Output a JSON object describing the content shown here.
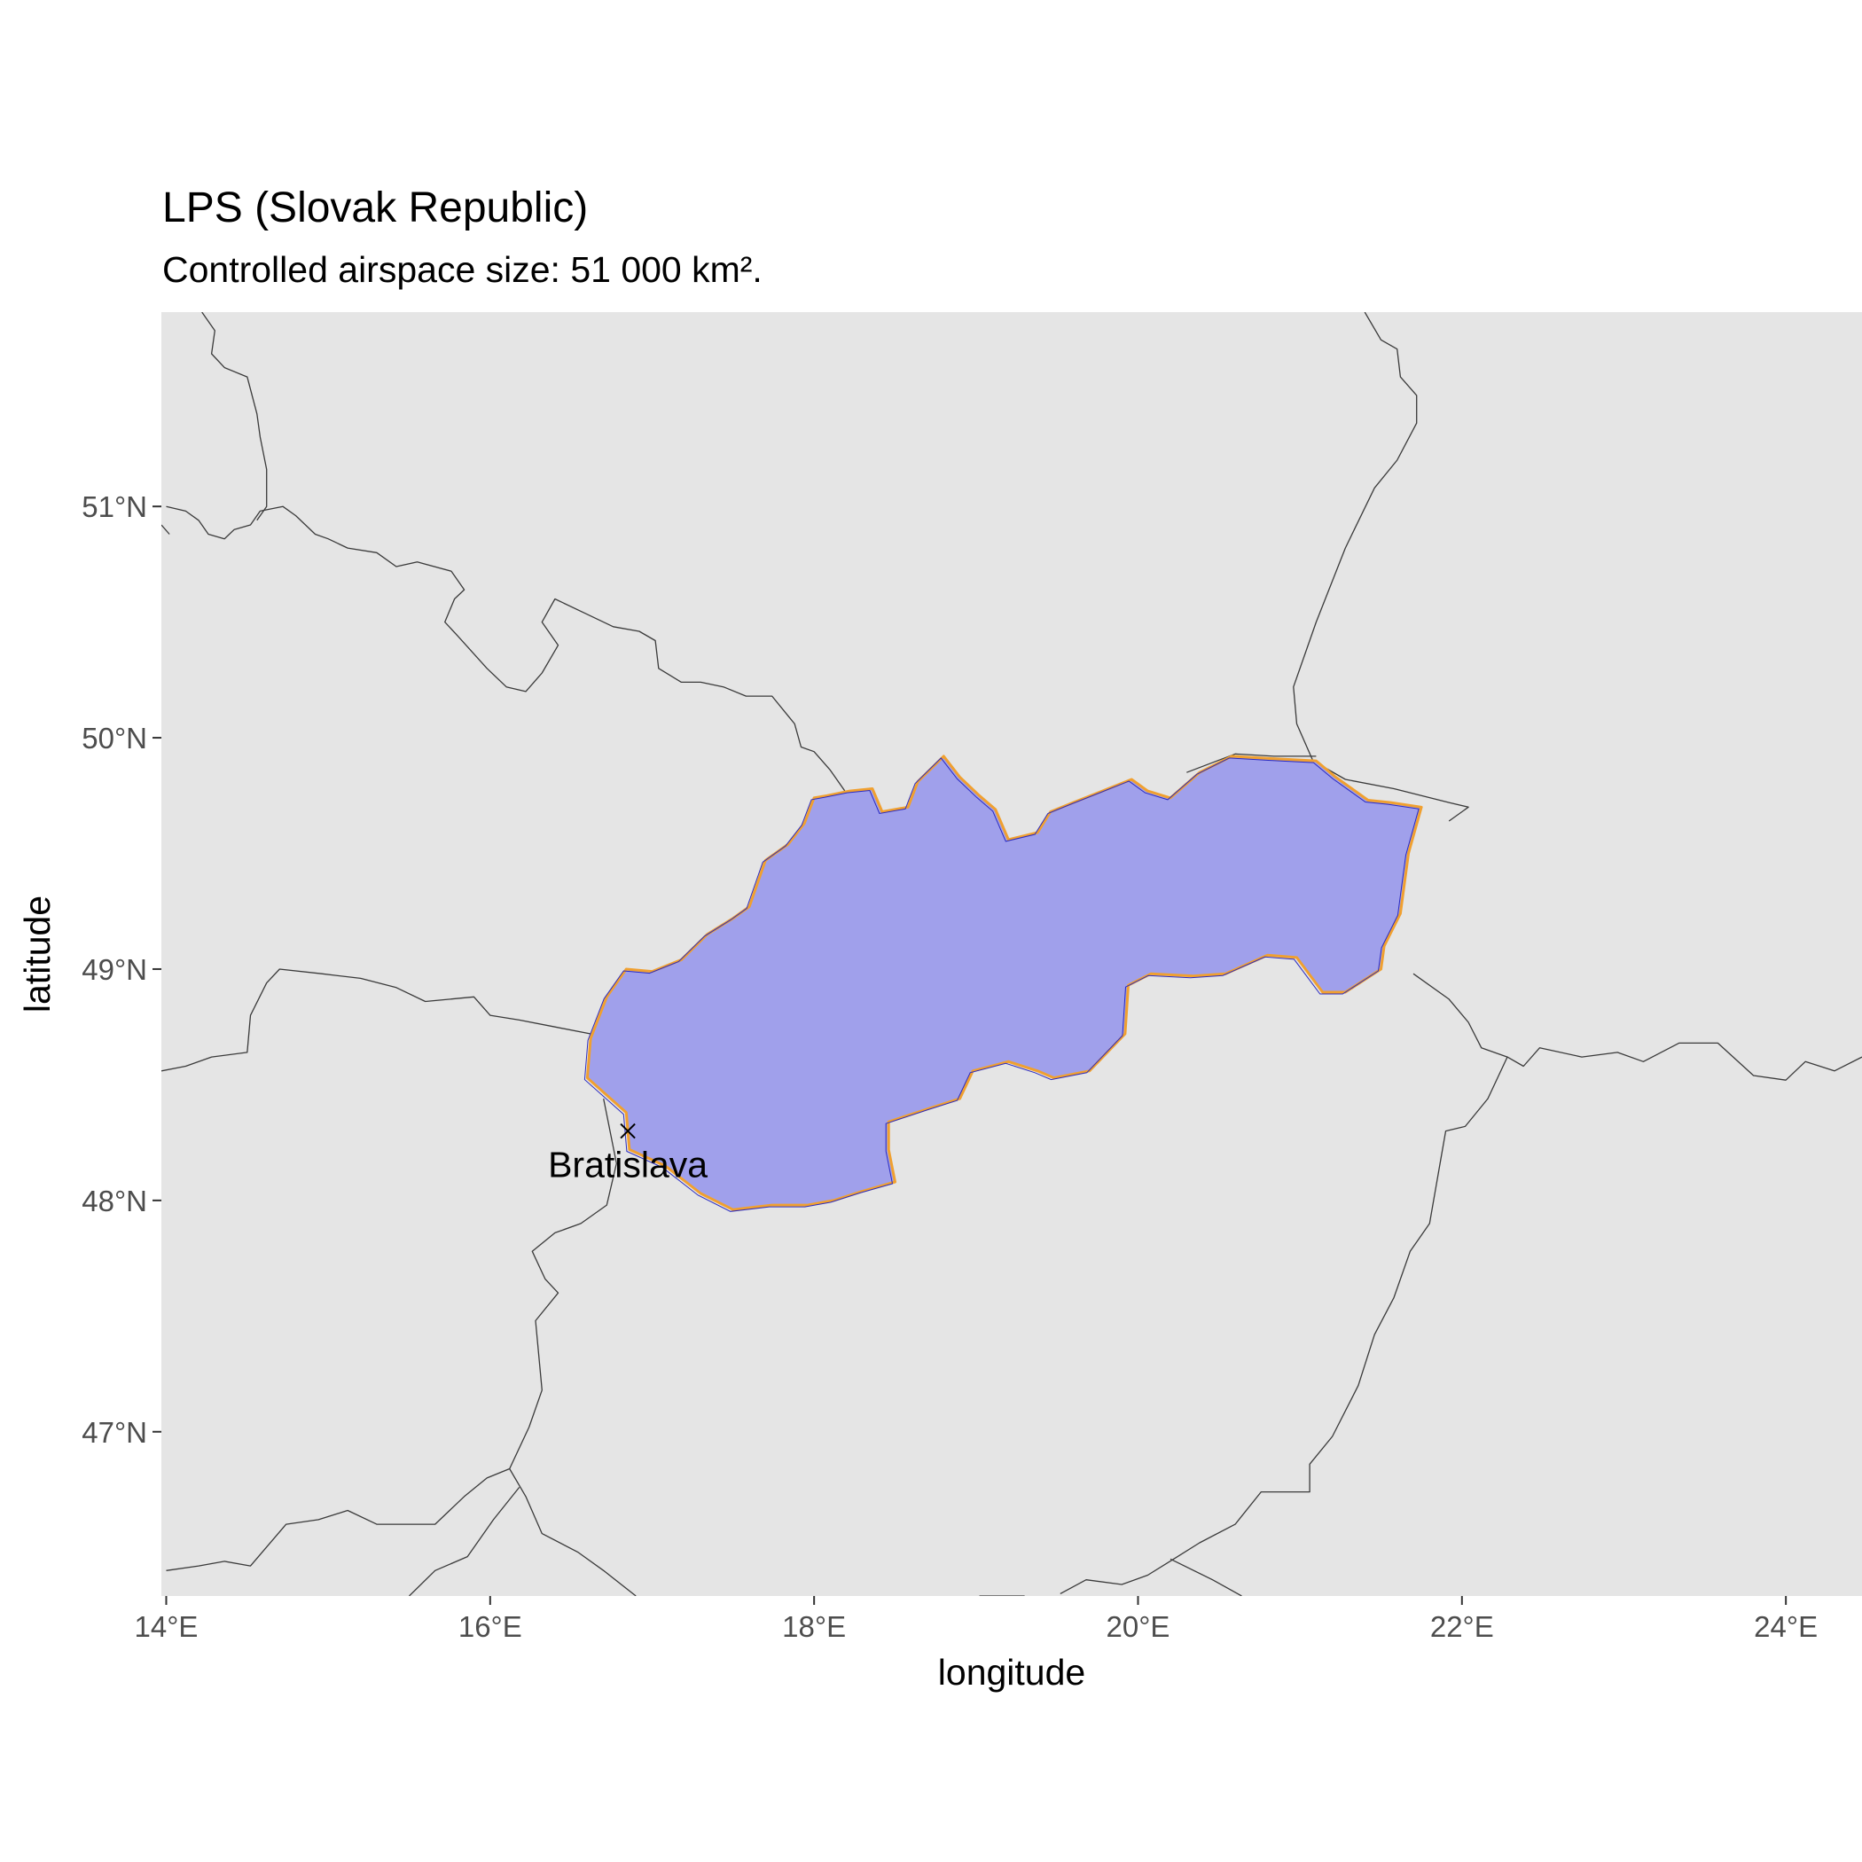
{
  "title": "LPS (Slovak Republic)",
  "subtitle": "Controlled airspace size: 51 000 km².",
  "axes": {
    "x_title": "longitude",
    "y_title": "latitude",
    "x_ticks": [
      {
        "value": 14,
        "label": "14°E"
      },
      {
        "value": 16,
        "label": "16°E"
      },
      {
        "value": 18,
        "label": "18°E"
      },
      {
        "value": 20,
        "label": "20°E"
      },
      {
        "value": 22,
        "label": "22°E"
      },
      {
        "value": 24,
        "label": "24°E"
      }
    ],
    "y_ticks": [
      {
        "value": 47,
        "label": "47°N"
      },
      {
        "value": 48,
        "label": "48°N"
      },
      {
        "value": 49,
        "label": "49°N"
      },
      {
        "value": 50,
        "label": "50°N"
      },
      {
        "value": 51,
        "label": "51°N"
      }
    ],
    "lon_range": [
      13.97,
      24.47
    ],
    "lat_range": [
      46.29,
      51.84
    ]
  },
  "city": {
    "name": "Bratislava",
    "lon": 16.85,
    "lat": 48.3
  },
  "colors": {
    "panel": "#e5e5e5",
    "airspace_fill": "#a0a0eb",
    "airspace_outline": "#f0a030",
    "country_outline": "#2a2ac0",
    "borders": "#3a3a3a"
  },
  "chart_data": {
    "type": "map",
    "region": "LPS (Slovak Republic)",
    "airspace_polygon": [
      [
        16.84,
        48.38
      ],
      [
        16.6,
        48.53
      ],
      [
        16.62,
        48.7
      ],
      [
        16.72,
        48.88
      ],
      [
        16.84,
        49.0
      ],
      [
        17.0,
        48.99
      ],
      [
        17.18,
        49.04
      ],
      [
        17.34,
        49.15
      ],
      [
        17.5,
        49.22
      ],
      [
        17.6,
        49.27
      ],
      [
        17.7,
        49.47
      ],
      [
        17.84,
        49.54
      ],
      [
        17.94,
        49.63
      ],
      [
        18.0,
        49.74
      ],
      [
        18.08,
        49.75
      ],
      [
        18.22,
        49.77
      ],
      [
        18.36,
        49.78
      ],
      [
        18.42,
        49.68
      ],
      [
        18.58,
        49.7
      ],
      [
        18.64,
        49.81
      ],
      [
        18.8,
        49.92
      ],
      [
        18.9,
        49.83
      ],
      [
        19.02,
        49.75
      ],
      [
        19.12,
        49.69
      ],
      [
        19.2,
        49.56
      ],
      [
        19.38,
        49.59
      ],
      [
        19.46,
        49.68
      ],
      [
        19.6,
        49.72
      ],
      [
        19.78,
        49.77
      ],
      [
        19.96,
        49.82
      ],
      [
        20.06,
        49.77
      ],
      [
        20.2,
        49.74
      ],
      [
        20.38,
        49.85
      ],
      [
        20.58,
        49.92
      ],
      [
        20.82,
        49.91
      ],
      [
        21.1,
        49.9
      ],
      [
        21.22,
        49.83
      ],
      [
        21.42,
        49.73
      ],
      [
        21.56,
        49.72
      ],
      [
        21.75,
        49.7
      ],
      [
        21.67,
        49.5
      ],
      [
        21.62,
        49.24
      ],
      [
        21.52,
        49.1
      ],
      [
        21.5,
        49.0
      ],
      [
        21.28,
        48.9
      ],
      [
        21.14,
        48.9
      ],
      [
        20.98,
        49.05
      ],
      [
        20.8,
        49.06
      ],
      [
        20.54,
        48.98
      ],
      [
        20.34,
        48.97
      ],
      [
        20.08,
        48.98
      ],
      [
        19.94,
        48.93
      ],
      [
        19.92,
        48.72
      ],
      [
        19.7,
        48.56
      ],
      [
        19.48,
        48.53
      ],
      [
        19.38,
        48.56
      ],
      [
        19.2,
        48.6
      ],
      [
        18.98,
        48.56
      ],
      [
        18.9,
        48.44
      ],
      [
        18.72,
        48.4
      ],
      [
        18.46,
        48.34
      ],
      [
        18.46,
        48.22
      ],
      [
        18.5,
        48.08
      ],
      [
        18.3,
        48.04
      ],
      [
        18.12,
        48.0
      ],
      [
        17.96,
        47.98
      ],
      [
        17.74,
        47.98
      ],
      [
        17.5,
        47.96
      ],
      [
        17.3,
        48.03
      ],
      [
        17.08,
        48.15
      ],
      [
        16.86,
        48.22
      ]
    ],
    "borders": [
      [
        [
          14.0,
          51.0
        ],
        [
          14.12,
          50.98
        ],
        [
          14.2,
          50.94
        ],
        [
          14.26,
          50.88
        ],
        [
          14.36,
          50.86
        ],
        [
          14.42,
          50.9
        ],
        [
          14.52,
          50.92
        ],
        [
          14.58,
          50.98
        ],
        [
          14.72,
          51.0
        ],
        [
          14.8,
          50.96
        ],
        [
          14.92,
          50.88
        ],
        [
          15.0,
          50.86
        ],
        [
          15.12,
          50.82
        ],
        [
          15.3,
          50.8
        ],
        [
          15.42,
          50.74
        ],
        [
          15.55,
          50.76
        ],
        [
          15.76,
          50.72
        ],
        [
          15.84,
          50.64
        ],
        [
          15.78,
          50.6
        ],
        [
          15.72,
          50.5
        ],
        [
          15.8,
          50.44
        ],
        [
          15.98,
          50.3
        ],
        [
          16.1,
          50.22
        ],
        [
          16.22,
          50.2
        ],
        [
          16.32,
          50.28
        ],
        [
          16.42,
          50.4
        ],
        [
          16.32,
          50.5
        ],
        [
          16.4,
          50.6
        ],
        [
          16.58,
          50.54
        ],
        [
          16.76,
          50.48
        ],
        [
          16.92,
          50.46
        ],
        [
          17.02,
          50.42
        ],
        [
          17.04,
          50.3
        ],
        [
          17.18,
          50.24
        ],
        [
          17.3,
          50.24
        ],
        [
          17.44,
          50.22
        ],
        [
          17.58,
          50.18
        ],
        [
          17.74,
          50.18
        ],
        [
          17.88,
          50.06
        ],
        [
          17.92,
          49.96
        ],
        [
          18.0,
          49.94
        ],
        [
          18.1,
          49.86
        ],
        [
          18.2,
          49.76
        ]
      ],
      [
        [
          14.22,
          51.84
        ],
        [
          14.3,
          51.76
        ],
        [
          14.28,
          51.66
        ],
        [
          14.36,
          51.6
        ],
        [
          14.5,
          51.56
        ],
        [
          14.56,
          51.4
        ],
        [
          14.58,
          51.3
        ],
        [
          14.62,
          51.16
        ],
        [
          14.62,
          51.0
        ],
        [
          14.56,
          50.94
        ]
      ],
      [
        [
          13.97,
          50.92
        ],
        [
          14.02,
          50.88
        ]
      ],
      [
        [
          18.6,
          49.68
        ],
        [
          18.8,
          49.5
        ]
      ],
      [
        [
          21.4,
          51.84
        ],
        [
          21.5,
          51.72
        ],
        [
          21.6,
          51.68
        ],
        [
          21.62,
          51.56
        ],
        [
          21.72,
          51.48
        ],
        [
          21.72,
          51.36
        ],
        [
          21.6,
          51.2
        ],
        [
          21.46,
          51.08
        ],
        [
          21.28,
          50.82
        ],
        [
          21.1,
          50.5
        ],
        [
          20.96,
          50.22
        ],
        [
          20.98,
          50.06
        ],
        [
          21.08,
          49.9
        ],
        [
          21.28,
          49.82
        ],
        [
          21.58,
          49.78
        ],
        [
          21.92,
          49.72
        ],
        [
          22.04,
          49.7
        ],
        [
          21.92,
          49.64
        ]
      ],
      [
        [
          20.3,
          49.85
        ],
        [
          20.6,
          49.93
        ],
        [
          20.84,
          49.92
        ],
        [
          21.1,
          49.92
        ]
      ],
      [
        [
          21.7,
          48.98
        ],
        [
          21.92,
          48.87
        ],
        [
          22.04,
          48.77
        ],
        [
          22.12,
          48.66
        ],
        [
          22.28,
          48.62
        ],
        [
          22.38,
          48.58
        ],
        [
          22.48,
          48.66
        ],
        [
          22.74,
          48.62
        ],
        [
          22.96,
          48.64
        ],
        [
          23.12,
          48.6
        ],
        [
          23.34,
          48.68
        ],
        [
          23.58,
          48.68
        ],
        [
          23.8,
          48.54
        ],
        [
          24.0,
          48.52
        ],
        [
          24.12,
          48.6
        ],
        [
          24.3,
          48.56
        ],
        [
          24.47,
          48.62
        ]
      ],
      [
        [
          22.28,
          48.62
        ],
        [
          22.16,
          48.44
        ],
        [
          22.02,
          48.32
        ],
        [
          21.9,
          48.3
        ],
        [
          21.8,
          47.9
        ],
        [
          21.68,
          47.78
        ],
        [
          21.58,
          47.58
        ],
        [
          21.46,
          47.42
        ],
        [
          21.36,
          47.2
        ],
        [
          21.2,
          46.98
        ],
        [
          21.06,
          46.86
        ],
        [
          21.06,
          46.74
        ],
        [
          20.76,
          46.74
        ],
        [
          20.6,
          46.6
        ],
        [
          20.38,
          46.52
        ],
        [
          20.22,
          46.45
        ],
        [
          20.06,
          46.38
        ],
        [
          19.9,
          46.34
        ],
        [
          19.68,
          46.36
        ],
        [
          19.52,
          46.3
        ]
      ],
      [
        [
          20.2,
          46.45
        ],
        [
          20.46,
          46.36
        ],
        [
          20.64,
          46.29
        ]
      ],
      [
        [
          19.3,
          46.29
        ],
        [
          19.02,
          46.29
        ]
      ],
      [
        [
          16.7,
          48.44
        ],
        [
          16.78,
          48.16
        ],
        [
          16.72,
          47.98
        ],
        [
          16.56,
          47.9
        ],
        [
          16.4,
          47.86
        ],
        [
          16.26,
          47.78
        ],
        [
          16.34,
          47.66
        ],
        [
          16.42,
          47.6
        ],
        [
          16.28,
          47.48
        ],
        [
          16.32,
          47.18
        ],
        [
          16.24,
          47.02
        ],
        [
          16.12,
          46.84
        ],
        [
          15.98,
          46.8
        ],
        [
          15.84,
          46.72
        ],
        [
          15.66,
          46.6
        ],
        [
          15.3,
          46.6
        ],
        [
          15.12,
          46.66
        ],
        [
          14.94,
          46.62
        ],
        [
          14.74,
          46.6
        ],
        [
          14.52,
          46.42
        ],
        [
          14.36,
          46.44
        ],
        [
          14.2,
          46.42
        ],
        [
          14.0,
          46.4
        ]
      ],
      [
        [
          16.12,
          46.84
        ],
        [
          16.22,
          46.72
        ],
        [
          16.32,
          46.56
        ],
        [
          16.54,
          46.48
        ],
        [
          16.7,
          46.4
        ],
        [
          16.9,
          46.29
        ]
      ],
      [
        [
          16.18,
          46.76
        ],
        [
          16.02,
          46.62
        ],
        [
          15.86,
          46.46
        ],
        [
          15.66,
          46.4
        ],
        [
          15.5,
          46.29
        ]
      ],
      [
        [
          13.97,
          48.56
        ],
        [
          14.12,
          48.58
        ],
        [
          14.28,
          48.62
        ],
        [
          14.5,
          48.64
        ],
        [
          14.52,
          48.8
        ],
        [
          14.62,
          48.94
        ],
        [
          14.7,
          49.0
        ],
        [
          14.96,
          48.98
        ],
        [
          15.2,
          48.96
        ],
        [
          15.42,
          48.92
        ],
        [
          15.6,
          48.86
        ],
        [
          15.9,
          48.88
        ],
        [
          16.0,
          48.8
        ],
        [
          16.18,
          48.78
        ],
        [
          16.4,
          48.75
        ],
        [
          16.62,
          48.72
        ]
      ]
    ]
  }
}
